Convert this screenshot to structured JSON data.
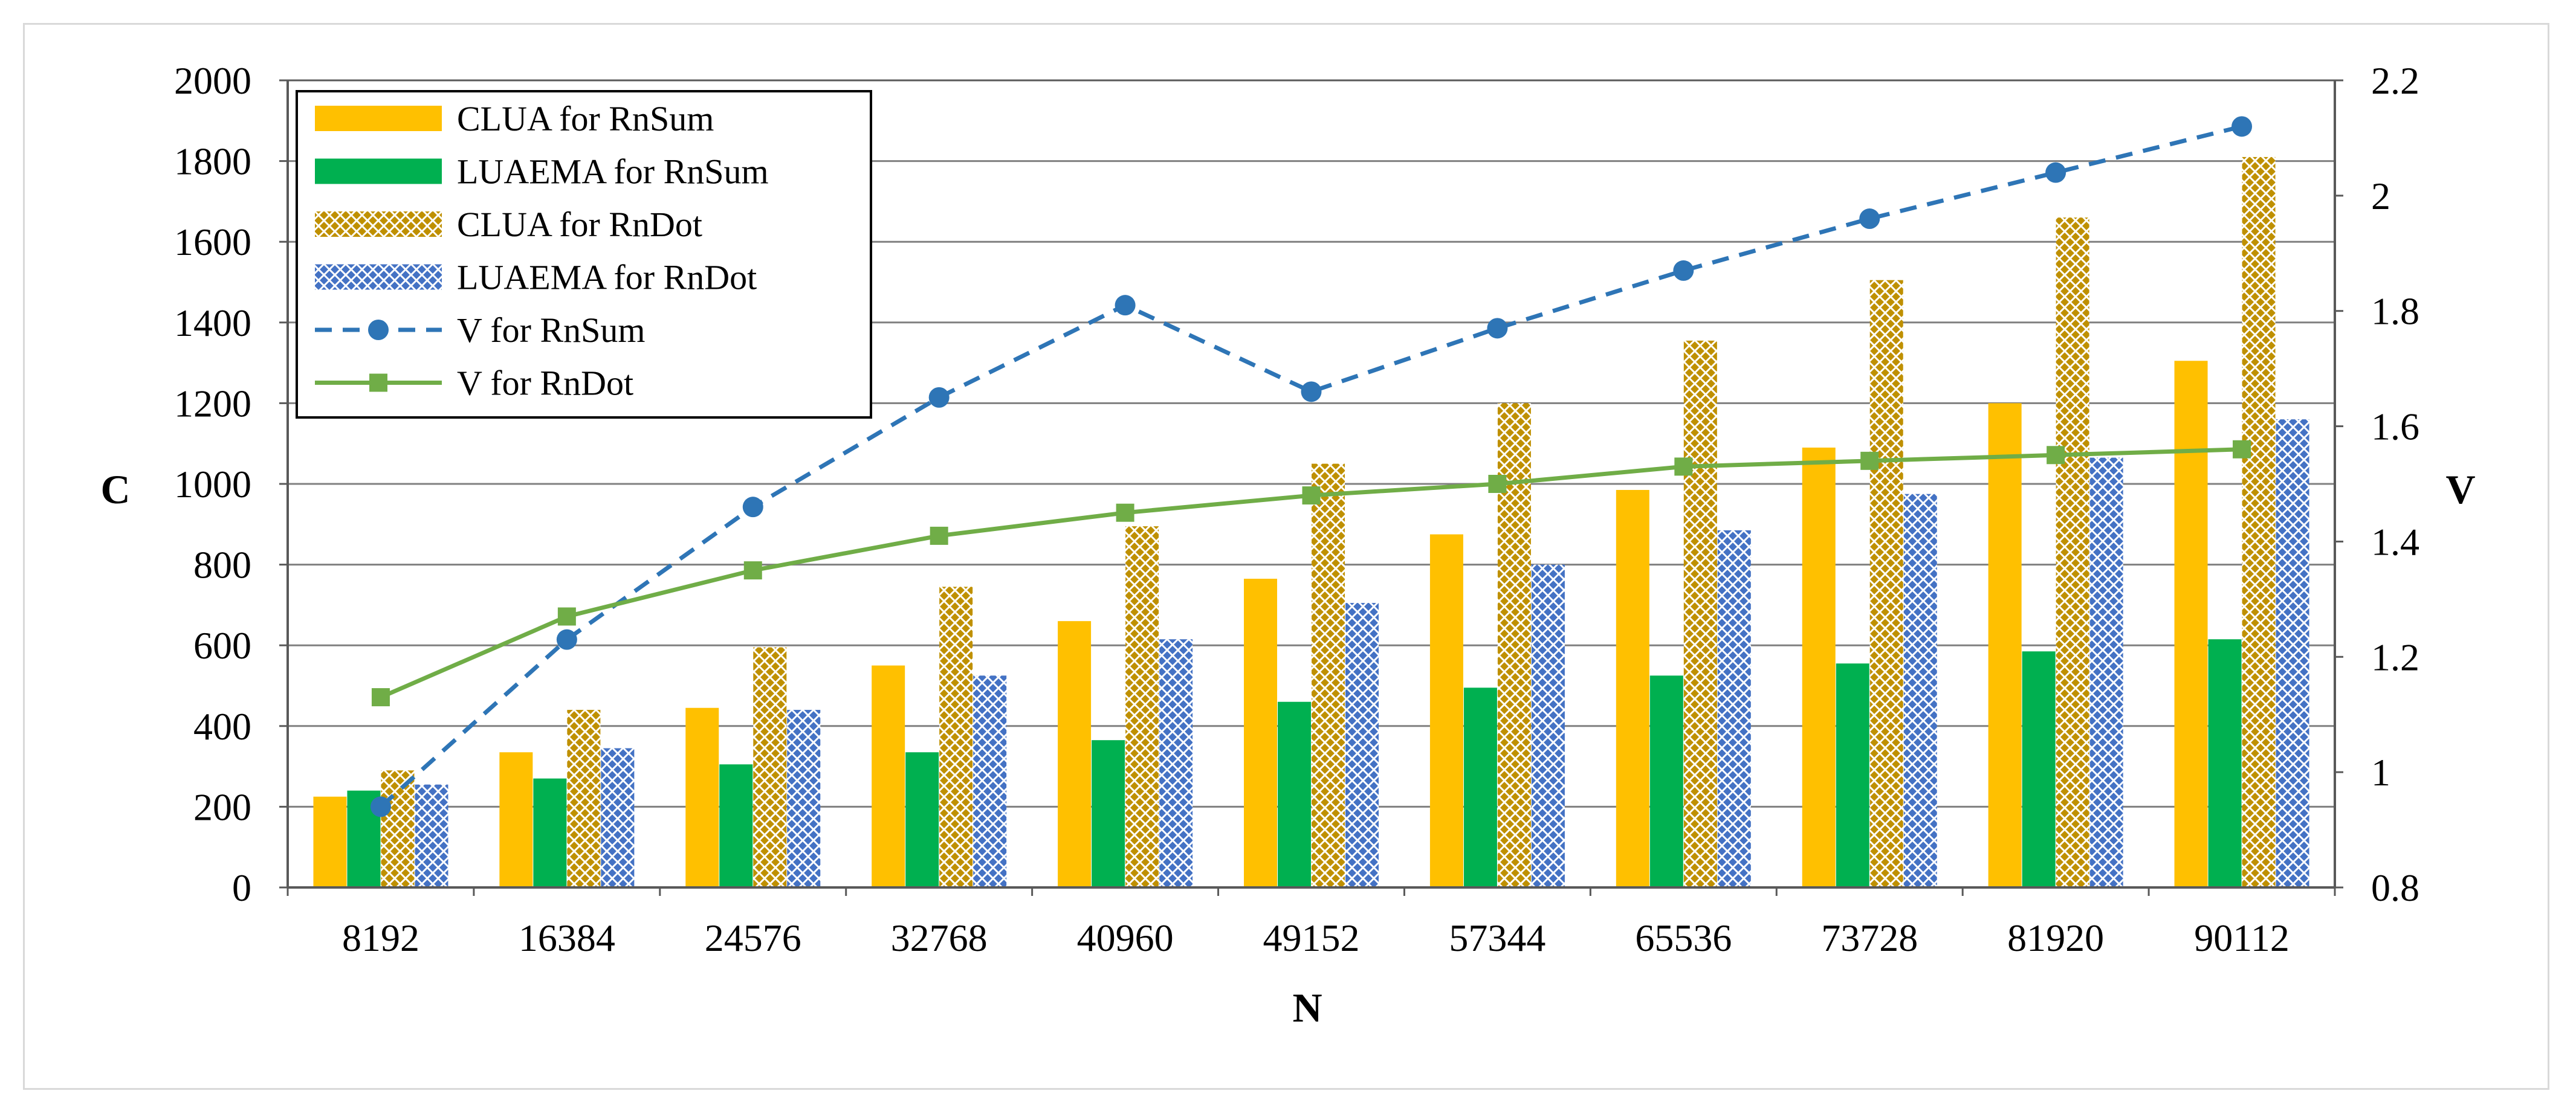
{
  "chart_data": {
    "type": "bar",
    "title": "",
    "xlabel": "N",
    "ylabel": "C",
    "y2label": "V",
    "categories": [
      "8192",
      "16384",
      "24576",
      "32768",
      "40960",
      "49152",
      "57344",
      "65536",
      "73728",
      "81920",
      "90112"
    ],
    "ylim": [
      0,
      2000
    ],
    "yticks": [
      "0",
      "200",
      "400",
      "600",
      "800",
      "1000",
      "1200",
      "1400",
      "1600",
      "1800",
      "2000"
    ],
    "y2lim": [
      0.8,
      2.2
    ],
    "y2ticks": [
      "0.8",
      "1",
      "1.2",
      "1.4",
      "1.6",
      "1.8",
      "2",
      "2.2"
    ],
    "grid": true,
    "legend_position": "top-left",
    "series": [
      {
        "name": "CLUA for RnSum",
        "kind": "bar",
        "axis": "left",
        "style": "solid",
        "color": "#FFC000",
        "values": [
          225,
          335,
          445,
          550,
          660,
          765,
          875,
          985,
          1090,
          1200,
          1305
        ]
      },
      {
        "name": "LUAEMA for RnSum",
        "kind": "bar",
        "axis": "left",
        "style": "solid",
        "color": "#00B050",
        "values": [
          240,
          270,
          305,
          335,
          365,
          460,
          495,
          525,
          555,
          585,
          615
        ]
      },
      {
        "name": "CLUA for RnDot",
        "kind": "bar",
        "axis": "left",
        "style": "pattern",
        "color": "#BF9000",
        "values": [
          290,
          440,
          595,
          745,
          895,
          1050,
          1200,
          1355,
          1505,
          1660,
          1810
        ]
      },
      {
        "name": "LUAEMA for RnDot",
        "kind": "bar",
        "axis": "left",
        "style": "pattern",
        "color": "#4472C4",
        "values": [
          255,
          345,
          440,
          525,
          615,
          705,
          800,
          885,
          975,
          1065,
          1160
        ]
      },
      {
        "name": "V for RnSum",
        "kind": "line",
        "axis": "right",
        "style": "dashed",
        "marker": "circle",
        "color": "#2E75B6",
        "values": [
          0.94,
          1.23,
          1.46,
          1.65,
          1.81,
          1.66,
          1.77,
          1.87,
          1.96,
          2.04,
          2.12
        ]
      },
      {
        "name": "V for RnDot",
        "kind": "line",
        "axis": "right",
        "style": "solid",
        "marker": "square",
        "color": "#70AD47",
        "values": [
          1.13,
          1.27,
          1.35,
          1.41,
          1.45,
          1.48,
          1.5,
          1.53,
          1.54,
          1.55,
          1.56
        ]
      }
    ]
  }
}
